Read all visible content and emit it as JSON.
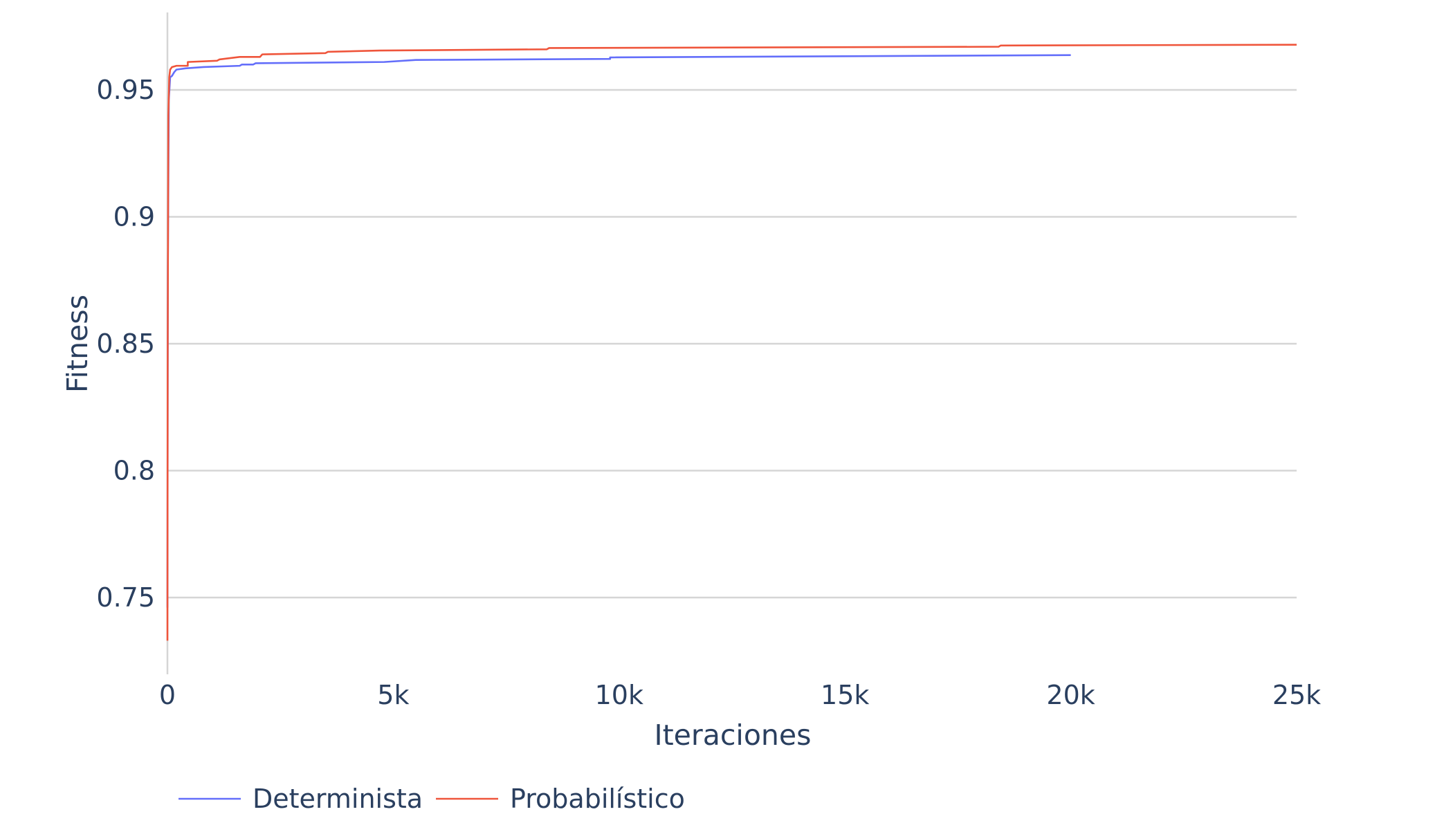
{
  "chart_data": {
    "type": "line",
    "title": "",
    "xlabel": "Iteraciones",
    "ylabel": "Fitness",
    "xlim": [
      0,
      25000
    ],
    "ylim": [
      0.72,
      0.979
    ],
    "x_ticks": [
      0,
      5000,
      10000,
      15000,
      20000,
      25000
    ],
    "x_tick_labels": [
      "0",
      "5k",
      "10k",
      "15k",
      "20k",
      "25k"
    ],
    "y_ticks": [
      0.75,
      0.8,
      0.85,
      0.9,
      0.95
    ],
    "y_tick_labels": [
      "0.75",
      "0.8",
      "0.85",
      "0.9",
      "0.95"
    ],
    "grid": true,
    "legend_position": "bottom-left",
    "series": [
      {
        "name": "Determinista",
        "color": "#636efa",
        "x": [
          0,
          10,
          30,
          60,
          100,
          150,
          200,
          400,
          800,
          1600,
          1650,
          1900,
          1950,
          4800,
          5500,
          9800,
          9800,
          20000
        ],
        "y": [
          0.746,
          0.88,
          0.946,
          0.955,
          0.9555,
          0.957,
          0.958,
          0.9585,
          0.959,
          0.9595,
          0.96,
          0.96,
          0.9605,
          0.961,
          0.9618,
          0.9622,
          0.9628,
          0.9637
        ]
      },
      {
        "name": "Probabilístico",
        "color": "#ef553b",
        "x": [
          0,
          5,
          20,
          40,
          60,
          100,
          200,
          450,
          450,
          1100,
          1150,
          1600,
          2050,
          2100,
          3500,
          3550,
          4700,
          8400,
          8450,
          18400,
          18450,
          25000
        ],
        "y": [
          0.733,
          0.84,
          0.94,
          0.955,
          0.958,
          0.959,
          0.9595,
          0.9595,
          0.961,
          0.9615,
          0.962,
          0.963,
          0.963,
          0.964,
          0.9645,
          0.965,
          0.9655,
          0.966,
          0.9665,
          0.967,
          0.9675,
          0.9678
        ]
      }
    ]
  }
}
